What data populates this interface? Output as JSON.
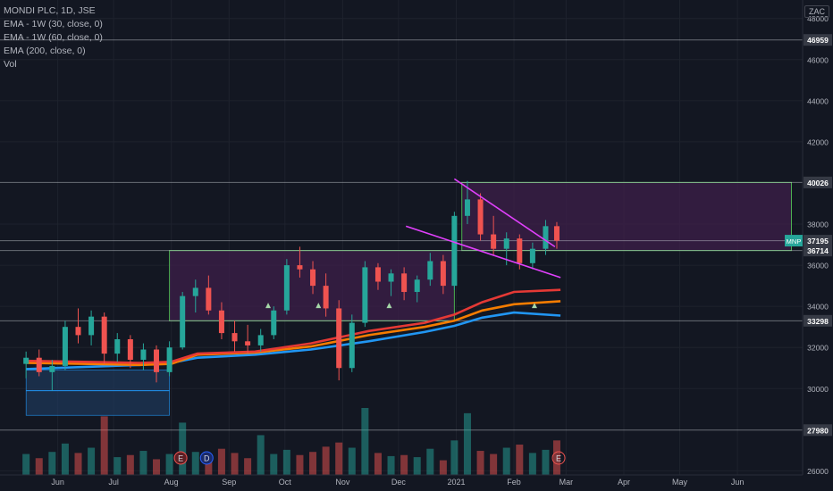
{
  "legend": {
    "symbol": "MONDI PLC, 1D, JSE",
    "ema1": "EMA - 1W (30, close, 0)",
    "ema2": "EMA - 1W (60, close, 0)",
    "ema3": "EMA (200, close, 0)",
    "vol": "Vol"
  },
  "currency": "ZAC",
  "badges": {
    "earnings": "E",
    "dividend": "D"
  },
  "colors": {
    "background": "#131722",
    "up": "#26a69a",
    "down": "#ef5350",
    "ema_orange": "#f57c00",
    "ema_red": "#e53935",
    "ema_blue": "#2196f3",
    "box_fill": "#3d1f4a",
    "box_border": "#4caf50",
    "channel": "#e040fb",
    "blue_box": "#1e3a5f"
  },
  "chart_data": {
    "type": "candlestick",
    "y_ticks": [
      26000,
      30000,
      32000,
      34000,
      36000,
      38000,
      42000,
      44000,
      46000,
      48000
    ],
    "ylim": [
      25800,
      48900
    ],
    "x_ticks": [
      "Jun",
      "Jul",
      "Aug",
      "Sep",
      "Oct",
      "Nov",
      "Dec",
      "2021",
      "Feb",
      "Mar",
      "Apr",
      "May",
      "Jun"
    ],
    "levels": [
      {
        "label": "46959",
        "value": 46959
      },
      {
        "label": "40026",
        "value": 40026
      },
      {
        "label": "37195",
        "value": 37195
      },
      {
        "label": "36714",
        "value": 36714
      },
      {
        "label": "33298",
        "value": 33298
      },
      {
        "label": "27980",
        "value": 27980
      }
    ],
    "price_badge_label": "MNP",
    "current_price": 37195,
    "zones": [
      {
        "from": "2020-07-31",
        "to": "2020-12-31",
        "low": 33298,
        "high": 36714
      },
      {
        "from": "2021-01-04",
        "to": "2021-06-30",
        "low": 36714,
        "high": 40026
      }
    ],
    "blue_zone": {
      "from": "2020-05-15",
      "to": "2020-07-31",
      "low": 28700,
      "high": 30900
    },
    "channel_upper": [
      [
        "2020-12-31",
        40200
      ],
      [
        "2021-02-23",
        36900
      ]
    ],
    "channel_lower": [
      [
        "2020-12-05",
        37900
      ],
      [
        "2021-02-26",
        35400
      ]
    ],
    "ema_red": [
      [
        "2020-05-15",
        31350
      ],
      [
        "2020-06-15",
        31300
      ],
      [
        "2020-07-15",
        31250
      ],
      [
        "2020-08-01",
        31300
      ],
      [
        "2020-08-15",
        31700
      ],
      [
        "2020-09-15",
        31800
      ],
      [
        "2020-10-15",
        32200
      ],
      [
        "2020-11-15",
        32800
      ],
      [
        "2020-12-15",
        33200
      ],
      [
        "2020-12-31",
        33600
      ],
      [
        "2021-01-15",
        34200
      ],
      [
        "2021-02-01",
        34700
      ],
      [
        "2021-02-26",
        34800
      ]
    ],
    "ema_orange": [
      [
        "2020-05-15",
        31250
      ],
      [
        "2020-06-15",
        31200
      ],
      [
        "2020-07-15",
        31150
      ],
      [
        "2020-08-01",
        31200
      ],
      [
        "2020-08-15",
        31650
      ],
      [
        "2020-09-15",
        31750
      ],
      [
        "2020-10-15",
        32050
      ],
      [
        "2020-11-15",
        32600
      ],
      [
        "2020-12-15",
        33000
      ],
      [
        "2020-12-31",
        33300
      ],
      [
        "2021-01-15",
        33800
      ],
      [
        "2021-02-01",
        34100
      ],
      [
        "2021-02-26",
        34250
      ]
    ],
    "ema_blue": [
      [
        "2020-05-15",
        30950
      ],
      [
        "2020-06-15",
        31050
      ],
      [
        "2020-07-15",
        31150
      ],
      [
        "2020-08-01",
        31250
      ],
      [
        "2020-08-15",
        31500
      ],
      [
        "2020-09-15",
        31650
      ],
      [
        "2020-10-15",
        31900
      ],
      [
        "2020-11-15",
        32300
      ],
      [
        "2020-12-15",
        32750
      ],
      [
        "2020-12-31",
        33050
      ],
      [
        "2021-01-15",
        33450
      ],
      [
        "2021-02-01",
        33700
      ],
      [
        "2021-02-26",
        33550
      ]
    ],
    "candles": [
      [
        "2020-05-15",
        31200,
        31800,
        30500,
        31500
      ],
      [
        "2020-05-22",
        31500,
        31900,
        30600,
        30800
      ],
      [
        "2020-05-29",
        30800,
        31400,
        29900,
        31100
      ],
      [
        "2020-06-05",
        31100,
        33300,
        30900,
        33000
      ],
      [
        "2020-06-12",
        33000,
        33900,
        32200,
        32600
      ],
      [
        "2020-06-19",
        32600,
        33800,
        32100,
        33500
      ],
      [
        "2020-06-26",
        33500,
        33700,
        31200,
        31700
      ],
      [
        "2020-07-03",
        31700,
        32700,
        31300,
        32400
      ],
      [
        "2020-07-10",
        32400,
        32600,
        31000,
        31400
      ],
      [
        "2020-07-17",
        31400,
        32200,
        30900,
        31900
      ],
      [
        "2020-07-24",
        31900,
        32100,
        30300,
        30800
      ],
      [
        "2020-07-31",
        30800,
        32300,
        30600,
        32000
      ],
      [
        "2020-08-07",
        32000,
        34700,
        31900,
        34500
      ],
      [
        "2020-08-14",
        34500,
        35300,
        33700,
        34900
      ],
      [
        "2020-08-21",
        34900,
        35500,
        33600,
        33800
      ],
      [
        "2020-08-28",
        33800,
        34200,
        32400,
        32700
      ],
      [
        "2020-09-04",
        32700,
        33300,
        31800,
        32300
      ],
      [
        "2020-09-11",
        32300,
        33100,
        31700,
        32100
      ],
      [
        "2020-09-18",
        32100,
        32900,
        31800,
        32600
      ],
      [
        "2020-09-25",
        32600,
        34000,
        32400,
        33800
      ],
      [
        "2020-10-02",
        33800,
        36300,
        33600,
        36000
      ],
      [
        "2020-10-09",
        36000,
        36900,
        35400,
        35800
      ],
      [
        "2020-10-16",
        35800,
        36200,
        34600,
        35000
      ],
      [
        "2020-10-23",
        35000,
        35600,
        33500,
        33900
      ],
      [
        "2020-10-30",
        33900,
        34300,
        30400,
        31000
      ],
      [
        "2020-11-06",
        31000,
        33600,
        30800,
        33200
      ],
      [
        "2020-11-13",
        33200,
        36200,
        33000,
        35900
      ],
      [
        "2020-11-20",
        35900,
        36100,
        34800,
        35200
      ],
      [
        "2020-11-27",
        35200,
        35800,
        34500,
        35600
      ],
      [
        "2020-12-04",
        35600,
        35900,
        34300,
        34700
      ],
      [
        "2020-12-11",
        34700,
        35500,
        34200,
        35300
      ],
      [
        "2020-12-18",
        35300,
        36600,
        35000,
        36200
      ],
      [
        "2020-12-25",
        36200,
        36500,
        34600,
        35000
      ],
      [
        "2020-12-31",
        35000,
        38600,
        34800,
        38400
      ],
      [
        "2021-01-07",
        38400,
        40100,
        38000,
        39200
      ],
      [
        "2021-01-14",
        39200,
        39500,
        37200,
        37500
      ],
      [
        "2021-01-21",
        37500,
        38400,
        36500,
        36800
      ],
      [
        "2021-01-28",
        36800,
        37600,
        36000,
        37300
      ],
      [
        "2021-02-04",
        37300,
        37500,
        35800,
        36100
      ],
      [
        "2021-02-11",
        36100,
        37100,
        35800,
        36800
      ],
      [
        "2021-02-18",
        36800,
        38200,
        36500,
        37900
      ],
      [
        "2021-02-24",
        37900,
        38100,
        36800,
        37195
      ]
    ],
    "volume": [
      [
        "2020-05-15",
        2.0
      ],
      [
        "2020-05-22",
        1.6
      ],
      [
        "2020-05-29",
        2.2
      ],
      [
        "2020-06-05",
        3.0
      ],
      [
        "2020-06-12",
        2.1
      ],
      [
        "2020-06-19",
        2.6
      ],
      [
        "2020-06-26",
        5.6
      ],
      [
        "2020-07-03",
        1.7
      ],
      [
        "2020-07-10",
        1.9
      ],
      [
        "2020-07-17",
        2.3
      ],
      [
        "2020-07-24",
        1.5
      ],
      [
        "2020-07-31",
        2.0
      ],
      [
        "2020-08-07",
        5.0
      ],
      [
        "2020-08-14",
        2.2
      ],
      [
        "2020-08-21",
        1.8
      ],
      [
        "2020-08-28",
        2.5
      ],
      [
        "2020-09-04",
        2.1
      ],
      [
        "2020-09-11",
        1.6
      ],
      [
        "2020-09-18",
        3.8
      ],
      [
        "2020-09-25",
        2.0
      ],
      [
        "2020-10-02",
        2.4
      ],
      [
        "2020-10-09",
        1.9
      ],
      [
        "2020-10-16",
        2.2
      ],
      [
        "2020-10-23",
        2.7
      ],
      [
        "2020-10-30",
        3.1
      ],
      [
        "2020-11-06",
        2.6
      ],
      [
        "2020-11-13",
        6.4
      ],
      [
        "2020-11-20",
        2.1
      ],
      [
        "2020-11-27",
        1.8
      ],
      [
        "2020-12-04",
        1.9
      ],
      [
        "2020-12-11",
        1.7
      ],
      [
        "2020-12-18",
        2.5
      ],
      [
        "2020-12-25",
        1.4
      ],
      [
        "2020-12-31",
        3.3
      ],
      [
        "2021-01-07",
        5.9
      ],
      [
        "2021-01-14",
        2.3
      ],
      [
        "2021-01-21",
        2.0
      ],
      [
        "2021-01-28",
        2.6
      ],
      [
        "2021-02-04",
        2.9
      ],
      [
        "2021-02-11",
        2.1
      ],
      [
        "2021-02-18",
        2.4
      ],
      [
        "2021-02-24",
        3.3
      ]
    ],
    "events": [
      {
        "date": "2020-08-06",
        "kind": "earnings"
      },
      {
        "date": "2020-08-20",
        "kind": "dividend"
      },
      {
        "date": "2021-02-25",
        "kind": "earnings",
        "future": true
      }
    ],
    "markers": [
      "2020-09-22",
      "2020-10-19",
      "2020-11-26",
      "2021-02-12"
    ]
  }
}
